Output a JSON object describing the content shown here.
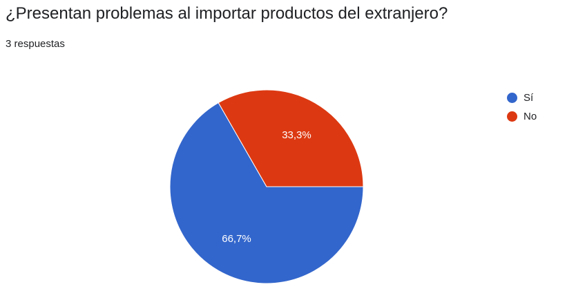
{
  "form": {
    "question": "¿Presentan problemas al importar productos del extranjero?",
    "responses": "3 respuestas"
  },
  "chart_data": {
    "type": "pie",
    "title": "¿Presentan problemas al importar productos del extranjero?",
    "legend_position": "right",
    "slices": [
      {
        "label": "Sí",
        "value": 66.7,
        "display": "66,7%",
        "color": "#3366CC"
      },
      {
        "label": "No",
        "value": 33.3,
        "display": "33,3%",
        "color": "#DC3912"
      }
    ]
  }
}
